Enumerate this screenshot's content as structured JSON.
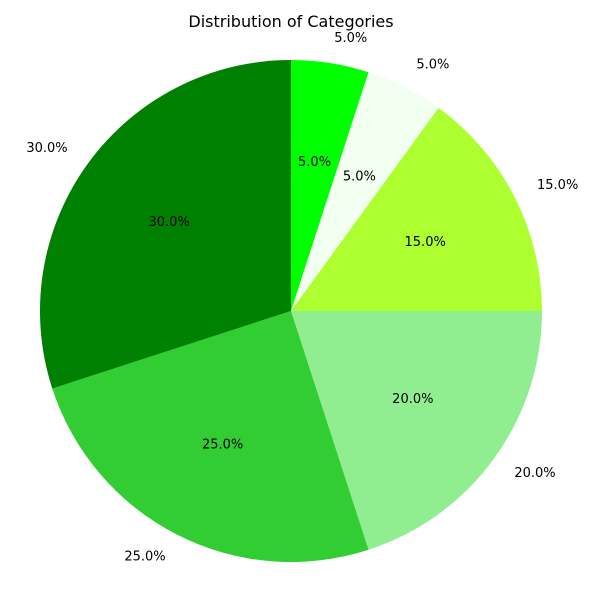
{
  "chart_data": {
    "type": "pie",
    "title": "Distribution of Categories",
    "values": [
      5,
      5,
      15,
      20,
      25,
      30
    ],
    "labels": [
      "5.0%",
      "5.0%",
      "15.0%",
      "20.0%",
      "25.0%",
      "30.0%"
    ],
    "colors": [
      "#00ff00",
      "#f0fff0",
      "#adff2f",
      "#90ee90",
      "#32cd32",
      "#008000"
    ],
    "start_angle_deg": 90,
    "direction": "clockwise",
    "legend": "none"
  }
}
